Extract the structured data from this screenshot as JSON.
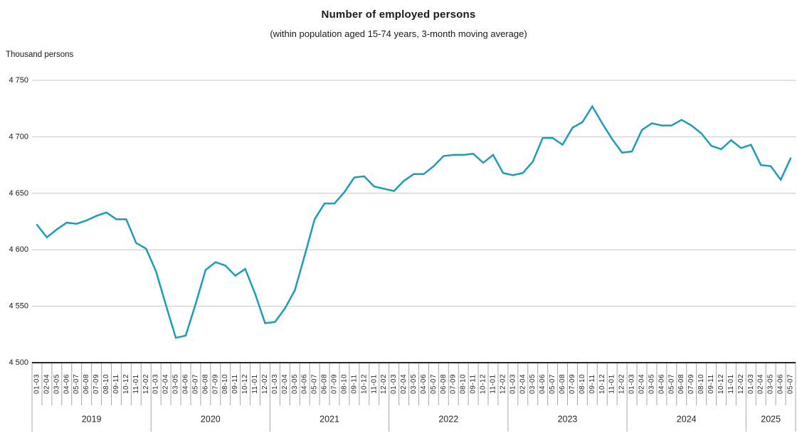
{
  "chart_data": {
    "type": "line",
    "title": "Number of employed persons",
    "subtitle": "(within population aged 15-74 years, 3-month moving average)",
    "unit_label": "Thousand persons",
    "ylim": [
      4500,
      4750
    ],
    "ytick_values": [
      4750,
      4700,
      4650,
      4600,
      4550,
      4500
    ],
    "ytick_labels": [
      "4 750",
      "4 700",
      "4 650",
      "4 600",
      "4 550",
      "4 500"
    ],
    "grid": "horizontal",
    "legend": "none",
    "line_color": "#1d9bb9",
    "series_name": "Number of employed persons",
    "years": [
      {
        "year": "2019",
        "months": [
          "01-03",
          "02-04",
          "03-05",
          "04-06",
          "05-07",
          "06-08",
          "07-09",
          "08-10",
          "09-11",
          "10-12",
          "11-01",
          "12-02"
        ],
        "values": [
          4622,
          4611,
          4618,
          4624,
          4623,
          4626,
          4630,
          4633,
          4627,
          4627,
          4606,
          4601
        ]
      },
      {
        "year": "2020",
        "months": [
          "01-03",
          "02-04",
          "03-05",
          "04-06",
          "05-07",
          "06-08",
          "07-09",
          "08-10",
          "09-11",
          "10-12",
          "11-01",
          "12-02"
        ],
        "values": [
          4581,
          4551,
          4522,
          4524,
          4552,
          4582,
          4589,
          4586,
          4577,
          4583,
          4561,
          4535
        ]
      },
      {
        "year": "2021",
        "months": [
          "01-03",
          "02-04",
          "03-05",
          "04-06",
          "05-07",
          "06-08",
          "07-09",
          "08-10",
          "09-11",
          "10-12",
          "11-01",
          "12-02"
        ],
        "values": [
          4536,
          4548,
          4564,
          4595,
          4627,
          4641,
          4641,
          4651,
          4664,
          4665,
          4656,
          4654
        ]
      },
      {
        "year": "2022",
        "months": [
          "01-03",
          "02-04",
          "03-05",
          "04-06",
          "05-07",
          "06-08",
          "07-09",
          "08-10",
          "09-11",
          "10-12",
          "11-01",
          "12-02"
        ],
        "values": [
          4652,
          4661,
          4667,
          4667,
          4674,
          4683,
          4684,
          4684,
          4685,
          4677,
          4684,
          4668
        ]
      },
      {
        "year": "2023",
        "months": [
          "01-03",
          "02-04",
          "03-05",
          "04-06",
          "05-07",
          "06-08",
          "07-09",
          "08-10",
          "09-11",
          "10-12",
          "11-01",
          "12-02"
        ],
        "values": [
          4666,
          4668,
          4678,
          4699,
          4699,
          4693,
          4708,
          4713,
          4727,
          4712,
          4698,
          4686
        ]
      },
      {
        "year": "2024",
        "months": [
          "01-03",
          "02-04",
          "03-05",
          "04-06",
          "05-07",
          "06-08",
          "07-09",
          "08-10",
          "09-11",
          "10-12",
          "11-01",
          "12-02"
        ],
        "values": [
          4687,
          4706,
          4712,
          4710,
          4710,
          4715,
          4710,
          4703,
          4692,
          4689,
          4697,
          4690
        ]
      },
      {
        "year": "2025",
        "months": [
          "01-03",
          "02-04",
          "03-05",
          "04-06",
          "05-07"
        ],
        "values": [
          4693,
          4675,
          4674,
          4662,
          4681
        ]
      }
    ]
  },
  "style": {
    "gridline_color": "#c6c6c6",
    "axis_color": "#262626",
    "tick_color": "#a8a8a8",
    "text_color": "#262626"
  }
}
